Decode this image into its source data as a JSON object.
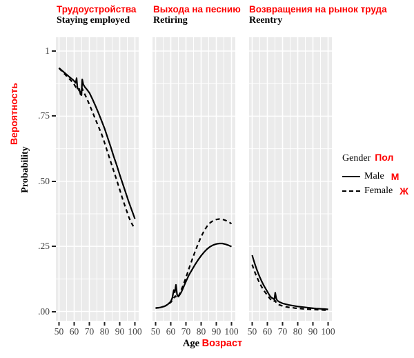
{
  "colors": {
    "accent_red": "#ff0000",
    "panel_background": "#ebebeb",
    "gridline": "#ffffff",
    "line_color": "#000000",
    "tick_text": "#444444"
  },
  "facets": [
    {
      "title_ru": "Трудоустройства",
      "title_en": "Staying employed"
    },
    {
      "title_ru": "Выхода на песнию",
      "title_en": "Retiring"
    },
    {
      "title_ru": "Возвращения на рынок труда",
      "title_en": "Reentry"
    }
  ],
  "y_axis": {
    "label_ru": "Вероятность",
    "label_en": "Probability"
  },
  "x_axis": {
    "label_en": "Age",
    "label_ru": "Возраст"
  },
  "legend": {
    "title_en": "Gender",
    "title_ru": "Пол",
    "items": [
      {
        "label_en": "Male",
        "label_ru": "М",
        "style": "solid"
      },
      {
        "label_en": "Female",
        "label_ru": "Ж",
        "style": "dashed"
      }
    ]
  },
  "chart_data": {
    "type": "line",
    "faceted": true,
    "xlabel": "Age / Возраст",
    "ylabel": "Probability / Вероятность",
    "x_range": [
      48,
      102
    ],
    "ylim": [
      0,
      1
    ],
    "x_ticks": [
      50,
      60,
      70,
      80,
      90,
      100
    ],
    "y_ticks": [
      1,
      0.75,
      0.5,
      0.25,
      0
    ],
    "y_tick_labels": [
      "1",
      ".75",
      ".50",
      ".25",
      ".00"
    ],
    "grid": "white major and minor gridlines on gray panel; minor y every 0.125, minor x every 5 years",
    "legend_position": "right",
    "facets": [
      {
        "name": "Staying employed",
        "series": [
          {
            "name": "Male",
            "style": "solid",
            "points": [
              [
                50,
                0.935
              ],
              [
                52,
                0.925
              ],
              [
                54,
                0.915
              ],
              [
                56,
                0.905
              ],
              [
                58,
                0.895
              ],
              [
                59.5,
                0.888
              ],
              [
                61,
                0.878
              ],
              [
                61.6,
                0.896
              ],
              [
                62.2,
                0.856
              ],
              [
                63.4,
                0.854
              ],
              [
                64.2,
                0.833
              ],
              [
                64.8,
                0.831
              ],
              [
                65.3,
                0.891
              ],
              [
                66,
                0.872
              ],
              [
                67,
                0.862
              ],
              [
                68,
                0.855
              ],
              [
                70,
                0.84
              ],
              [
                72,
                0.816
              ],
              [
                74,
                0.79
              ],
              [
                76,
                0.762
              ],
              [
                78,
                0.733
              ],
              [
                80,
                0.703
              ],
              [
                82,
                0.668
              ],
              [
                84,
                0.633
              ],
              [
                86,
                0.596
              ],
              [
                88,
                0.562
              ],
              [
                90,
                0.525
              ],
              [
                92,
                0.49
              ],
              [
                94,
                0.455
              ],
              [
                96,
                0.42
              ],
              [
                98,
                0.388
              ],
              [
                100,
                0.356
              ]
            ]
          },
          {
            "name": "Female",
            "style": "dashed",
            "points": [
              [
                50,
                0.934
              ],
              [
                52,
                0.922
              ],
              [
                54,
                0.91
              ],
              [
                56,
                0.898
              ],
              [
                58,
                0.886
              ],
              [
                60,
                0.872
              ],
              [
                61,
                0.862
              ],
              [
                62,
                0.856
              ],
              [
                63,
                0.85
              ],
              [
                64,
                0.843
              ],
              [
                64.6,
                0.84
              ],
              [
                65.2,
                0.857
              ],
              [
                66,
                0.846
              ],
              [
                68,
                0.822
              ],
              [
                70,
                0.795
              ],
              [
                72,
                0.767
              ],
              [
                74,
                0.738
              ],
              [
                76,
                0.71
              ],
              [
                78,
                0.682
              ],
              [
                80,
                0.648
              ],
              [
                82,
                0.612
              ],
              [
                84,
                0.576
              ],
              [
                86,
                0.54
              ],
              [
                88,
                0.505
              ],
              [
                90,
                0.468
              ],
              [
                92,
                0.43
              ],
              [
                94,
                0.396
              ],
              [
                96,
                0.362
              ],
              [
                97.5,
                0.342
              ],
              [
                99,
                0.327
              ]
            ]
          }
        ]
      },
      {
        "name": "Retiring",
        "series": [
          {
            "name": "Male",
            "style": "solid",
            "points": [
              [
                50,
                0.013
              ],
              [
                53,
                0.015
              ],
              [
                56,
                0.02
              ],
              [
                58,
                0.027
              ],
              [
                60,
                0.038
              ],
              [
                61,
                0.052
              ],
              [
                62,
                0.082
              ],
              [
                62.7,
                0.073
              ],
              [
                63.4,
                0.102
              ],
              [
                64.2,
                0.063
              ],
              [
                65,
                0.057
              ],
              [
                66,
                0.065
              ],
              [
                67,
                0.075
              ],
              [
                68,
                0.088
              ],
              [
                70,
                0.115
              ],
              [
                72,
                0.14
              ],
              [
                74,
                0.16
              ],
              [
                76,
                0.18
              ],
              [
                78,
                0.198
              ],
              [
                80,
                0.214
              ],
              [
                82,
                0.228
              ],
              [
                84,
                0.24
              ],
              [
                86,
                0.249
              ],
              [
                88,
                0.255
              ],
              [
                90,
                0.259
              ],
              [
                92,
                0.261
              ],
              [
                94,
                0.261
              ],
              [
                96,
                0.258
              ],
              [
                98,
                0.254
              ],
              [
                100,
                0.249
              ]
            ]
          },
          {
            "name": "Female",
            "style": "dashed",
            "points": [
              [
                50,
                0.013
              ],
              [
                53,
                0.015
              ],
              [
                56,
                0.02
              ],
              [
                58,
                0.026
              ],
              [
                60,
                0.035
              ],
              [
                61,
                0.042
              ],
              [
                62,
                0.052
              ],
              [
                63,
                0.059
              ],
              [
                64,
                0.052
              ],
              [
                65,
                0.058
              ],
              [
                66,
                0.07
              ],
              [
                68,
                0.098
              ],
              [
                70,
                0.13
              ],
              [
                72,
                0.165
              ],
              [
                74,
                0.198
              ],
              [
                76,
                0.23
              ],
              [
                78,
                0.26
              ],
              [
                80,
                0.287
              ],
              [
                82,
                0.31
              ],
              [
                84,
                0.328
              ],
              [
                86,
                0.341
              ],
              [
                88,
                0.349
              ],
              [
                90,
                0.353
              ],
              [
                92,
                0.355
              ],
              [
                94,
                0.354
              ],
              [
                96,
                0.35
              ],
              [
                98,
                0.344
              ],
              [
                100,
                0.337
              ]
            ]
          }
        ]
      },
      {
        "name": "Reentry",
        "series": [
          {
            "name": "Male",
            "style": "solid",
            "points": [
              [
                50,
                0.216
              ],
              [
                51,
                0.196
              ],
              [
                52,
                0.178
              ],
              [
                53,
                0.161
              ],
              [
                54,
                0.146
              ],
              [
                55,
                0.132
              ],
              [
                56,
                0.119
              ],
              [
                57,
                0.107
              ],
              [
                58,
                0.096
              ],
              [
                59,
                0.086
              ],
              [
                60,
                0.076
              ],
              [
                61,
                0.066
              ],
              [
                62,
                0.057
              ],
              [
                63,
                0.052
              ],
              [
                64,
                0.049
              ],
              [
                64.6,
                0.046
              ],
              [
                65.2,
                0.072
              ],
              [
                65.8,
                0.05
              ],
              [
                66.5,
                0.042
              ],
              [
                68,
                0.036
              ],
              [
                70,
                0.031
              ],
              [
                72,
                0.028
              ],
              [
                74,
                0.025
              ],
              [
                76,
                0.023
              ],
              [
                78,
                0.021
              ],
              [
                80,
                0.019
              ],
              [
                83,
                0.017
              ],
              [
                86,
                0.015
              ],
              [
                89,
                0.013
              ],
              [
                92,
                0.011
              ],
              [
                95,
                0.01
              ],
              [
                98,
                0.009
              ],
              [
                100,
                0.008
              ]
            ]
          },
          {
            "name": "Female",
            "style": "dashed",
            "points": [
              [
                50,
                0.18
              ],
              [
                51,
                0.163
              ],
              [
                52,
                0.147
              ],
              [
                53,
                0.133
              ],
              [
                54,
                0.12
              ],
              [
                55,
                0.108
              ],
              [
                56,
                0.097
              ],
              [
                57,
                0.087
              ],
              [
                58,
                0.078
              ],
              [
                59,
                0.07
              ],
              [
                60,
                0.062
              ],
              [
                61,
                0.054
              ],
              [
                62,
                0.047
              ],
              [
                63,
                0.042
              ],
              [
                64,
                0.038
              ],
              [
                65,
                0.042
              ],
              [
                66,
                0.032
              ],
              [
                67,
                0.028
              ],
              [
                68,
                0.025
              ],
              [
                70,
                0.021
              ],
              [
                72,
                0.018
              ],
              [
                74,
                0.016
              ],
              [
                76,
                0.015
              ],
              [
                78,
                0.013
              ],
              [
                80,
                0.012
              ],
              [
                83,
                0.01
              ],
              [
                86,
                0.009
              ],
              [
                89,
                0.008
              ],
              [
                92,
                0.007
              ],
              [
                95,
                0.006
              ],
              [
                98,
                0.005
              ],
              [
                100,
                0.004
              ]
            ]
          }
        ]
      }
    ]
  }
}
